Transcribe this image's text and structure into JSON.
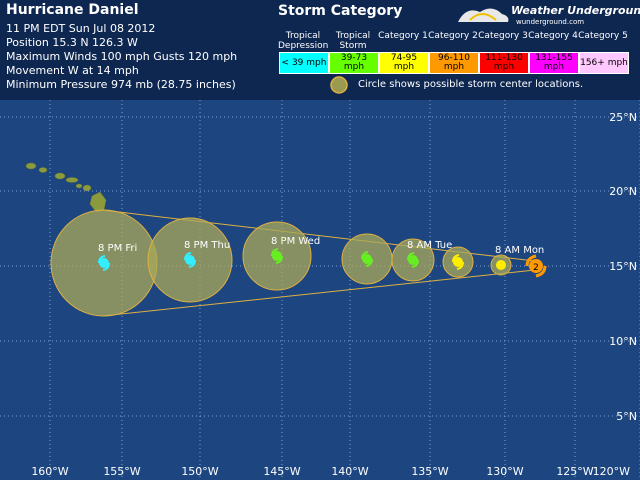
{
  "header": {
    "title": "Hurricane Daniel",
    "lines": [
      "11 PM EDT Sun Jul 08 2012",
      "Position 15.3 N 126.3 W",
      "Maximum Winds 100 mph  Gusts 120 mph",
      "Movement W at 14 mph",
      "Minimum Pressure 974 mb (28.75 inches)"
    ]
  },
  "legend": {
    "title": "Storm Category",
    "categories": [
      {
        "name": "Tropical Depression",
        "range": "< 39 mph",
        "color": "#00ffff"
      },
      {
        "name": "Tropical Storm",
        "range": "39-73 mph",
        "color": "#66ff00"
      },
      {
        "name": "Category 1",
        "range": "74-95 mph",
        "color": "#ffff00"
      },
      {
        "name": "Category 2",
        "range": "96-110 mph",
        "color": "#ff9900"
      },
      {
        "name": "Category 3",
        "range": "111-130 mph",
        "color": "#ff0000"
      },
      {
        "name": "Category 4",
        "range": "131-155 mph",
        "color": "#ff00ff"
      },
      {
        "name": "Category 5",
        "range": "156+ mph",
        "color": "#ffc8ff"
      }
    ],
    "note": "Circle shows possible storm center locations."
  },
  "brand": {
    "name": "Weather Underground",
    "site": "wunderground.com"
  },
  "map": {
    "lat_labels": [
      "25°N",
      "20°N",
      "15°N",
      "10°N",
      "5°N"
    ],
    "lon_labels": [
      "160°W",
      "155°W",
      "150°W",
      "145°W",
      "140°W",
      "135°W",
      "130°W",
      "125°W",
      "120°W"
    ]
  },
  "forecast": {
    "labels": [
      "8 PM Fri",
      "8 PM Thu",
      "8 PM Wed",
      "8 AM Tue",
      "8 AM Mon"
    ],
    "current_category": "2"
  }
}
